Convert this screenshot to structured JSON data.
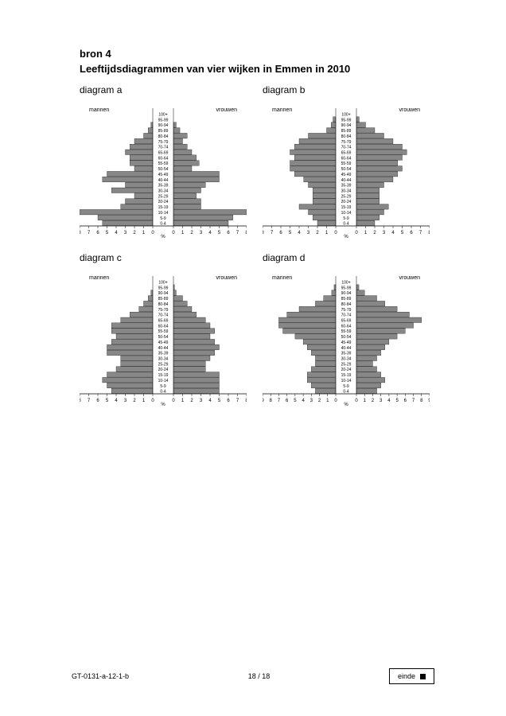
{
  "source_label": "bron 4",
  "title": "Leeftijdsdiagrammen van vier wijken in Emmen in 2010",
  "male_label": "mannen",
  "female_label": "vrouwen",
  "axis_unit": "%",
  "axis_ticks": [
    8,
    7,
    6,
    5,
    4,
    3,
    2,
    1,
    0,
    0,
    1,
    2,
    3,
    4,
    5,
    6,
    7,
    8
  ],
  "age_labels": [
    "100+",
    "95-99",
    "90-94",
    "85-89",
    "80-84",
    "75-79",
    "70-74",
    "65-69",
    "60-64",
    "55-59",
    "50-54",
    "45-49",
    "40-44",
    "35-39",
    "30-34",
    "25-29",
    "20-24",
    "15-19",
    "10-14",
    "5-9",
    "0-4"
  ],
  "bar_color": "#878787",
  "bar_border": "#000000",
  "axis_color": "#000000",
  "panels": [
    {
      "id": "a",
      "label": "diagram a",
      "max": 8,
      "male": [
        0,
        0,
        0.2,
        0.5,
        1.0,
        2.0,
        2.5,
        3.0,
        2.5,
        2.5,
        2.0,
        5.0,
        5.5,
        3.0,
        4.5,
        2.0,
        3.0,
        3.5,
        8.0,
        6.0,
        5.5
      ],
      "female": [
        0,
        0,
        0.3,
        0.7,
        1.5,
        1.0,
        1.5,
        2.0,
        2.5,
        2.8,
        2.0,
        5.0,
        5.0,
        3.5,
        3.0,
        2.5,
        3.0,
        3.0,
        8.0,
        6.5,
        6.0
      ]
    },
    {
      "id": "b",
      "label": "diagram b",
      "max": 8,
      "male": [
        0,
        0.3,
        0.5,
        1.0,
        3.0,
        4.0,
        4.5,
        5.0,
        4.5,
        5.0,
        5.0,
        4.5,
        3.5,
        3.0,
        2.5,
        2.5,
        2.5,
        4.0,
        3.0,
        2.5,
        2.0
      ],
      "female": [
        0,
        0.3,
        1.0,
        2.0,
        3.0,
        4.0,
        5.0,
        5.5,
        5.0,
        4.5,
        5.0,
        4.5,
        4.0,
        3.0,
        2.5,
        2.5,
        2.5,
        3.5,
        3.0,
        2.5,
        2.0
      ]
    },
    {
      "id": "c",
      "label": "diagram c",
      "max": 8,
      "male": [
        0,
        0,
        0.2,
        0.5,
        1.0,
        1.5,
        2.5,
        3.5,
        4.5,
        4.5,
        4.0,
        4.5,
        5.0,
        5.0,
        3.5,
        3.5,
        4.0,
        5.0,
        5.5,
        5.0,
        4.5
      ],
      "female": [
        0,
        0.1,
        0.3,
        1.0,
        1.5,
        2.0,
        2.5,
        3.5,
        4.0,
        4.5,
        4.0,
        4.5,
        5.0,
        4.5,
        4.0,
        3.5,
        3.5,
        5.0,
        5.0,
        5.0,
        5.0
      ]
    },
    {
      "id": "d",
      "label": "diagram d",
      "max": 9,
      "male": [
        0,
        0.2,
        0.5,
        1.5,
        2.5,
        4.5,
        6.0,
        7.0,
        7.0,
        6.5,
        5.0,
        4.0,
        3.5,
        3.0,
        2.5,
        2.5,
        3.0,
        3.5,
        3.5,
        3.0,
        2.5
      ],
      "female": [
        0,
        0.3,
        1.0,
        2.5,
        3.5,
        5.0,
        6.5,
        8.0,
        7.0,
        6.0,
        5.0,
        4.0,
        3.5,
        3.0,
        2.5,
        2.0,
        2.5,
        3.0,
        3.5,
        3.0,
        2.5
      ]
    }
  ],
  "footer_left": "GT-0131-a-12-1-b",
  "footer_center": "18 / 18",
  "footer_right": "einde"
}
